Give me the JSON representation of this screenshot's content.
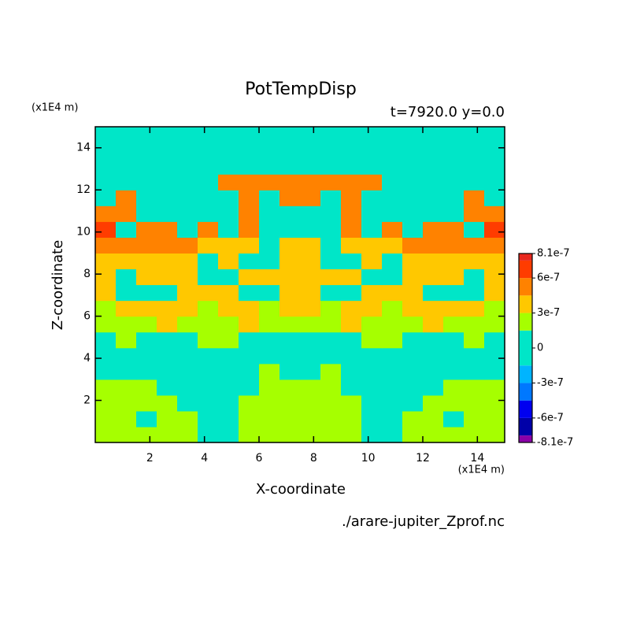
{
  "chart_data": {
    "type": "contour",
    "title": "PotTempDisp",
    "subtitle": "t=7920.0 y=0.0",
    "x_label": "X-coordinate",
    "y_label": "Z-coordinate",
    "x_unit": "(x1E4 m)",
    "y_unit": "(x1E4 m)",
    "source": "./arare-jupiter_Zprof.nc",
    "xlim": [
      0,
      15
    ],
    "ylim": [
      0,
      15
    ],
    "xticks": [
      2,
      4,
      6,
      8,
      10,
      12,
      14
    ],
    "yticks": [
      2,
      4,
      6,
      8,
      10,
      12,
      14
    ],
    "levels": [
      -8.1e-07,
      -7.5e-07,
      -6e-07,
      -4.5e-07,
      -3e-07,
      -1.5e-07,
      1.5e-07,
      3e-07,
      4.5e-07,
      6e-07,
      7.5e-07,
      8.1e-07
    ],
    "colors": [
      "#8a00a8",
      "#0000a8",
      "#0000f0",
      "#0078ff",
      "#00b4ff",
      "#00e6c8",
      "#a6ff00",
      "#ffc800",
      "#ff8200",
      "#ff3c00",
      "#e8281e",
      "#ff9a9a"
    ],
    "colorbar_ticks": [
      8.1e-07,
      6e-07,
      3e-07,
      0,
      -3e-07,
      -6e-07,
      -8.1e-07
    ],
    "x": [
      0.375,
      1.125,
      1.875,
      2.625,
      3.375,
      4.125,
      4.875,
      5.625,
      6.375,
      7.125,
      7.875,
      8.625,
      9.375,
      10.125,
      10.875,
      11.625,
      12.375,
      13.125,
      13.875,
      14.625
    ],
    "y": [
      0.375,
      1.125,
      1.875,
      2.625,
      3.375,
      4.125,
      4.875,
      5.625,
      6.375,
      7.125,
      7.875,
      8.625,
      9.375,
      10.125,
      10.875,
      11.625,
      12.375,
      13.125,
      13.875,
      14.625
    ],
    "z": [
      [
        2.2e-07,
        2.2e-07,
        2.2e-07,
        2.2e-07,
        2.2e-07,
        0,
        0,
        2.2e-07,
        2.2e-07,
        2.2e-07,
        2.2e-07,
        2.2e-07,
        2.2e-07,
        0,
        0,
        2.2e-07,
        2.2e-07,
        2.2e-07,
        2.2e-07,
        2.2e-07
      ],
      [
        2.2e-07,
        2.2e-07,
        0,
        2.2e-07,
        2.2e-07,
        0,
        0,
        2.2e-07,
        2.2e-07,
        2.2e-07,
        2.2e-07,
        2.2e-07,
        2.2e-07,
        0,
        0,
        2.2e-07,
        2.2e-07,
        0,
        2.2e-07,
        2.2e-07
      ],
      [
        2.2e-07,
        2.2e-07,
        2.2e-07,
        2.2e-07,
        0,
        0,
        0,
        2.2e-07,
        2.2e-07,
        2.2e-07,
        2.2e-07,
        2.2e-07,
        2.2e-07,
        0,
        0,
        0,
        2.2e-07,
        2.2e-07,
        2.2e-07,
        2.2e-07
      ],
      [
        2.2e-07,
        2.2e-07,
        2.2e-07,
        0,
        0,
        0,
        0,
        0,
        2.2e-07,
        2.2e-07,
        2.2e-07,
        2.2e-07,
        0,
        0,
        0,
        0,
        0,
        2.2e-07,
        2.2e-07,
        2.2e-07
      ],
      [
        0,
        0,
        0,
        0,
        0,
        0,
        0,
        0,
        2.2e-07,
        0,
        0,
        2.2e-07,
        0,
        0,
        0,
        0,
        0,
        0,
        0,
        0
      ],
      [
        0,
        0,
        0,
        0,
        0,
        0,
        0,
        0,
        0,
        0,
        0,
        0,
        0,
        0,
        0,
        0,
        0,
        0,
        0,
        0
      ],
      [
        0,
        2.2e-07,
        0,
        0,
        0,
        2.2e-07,
        2.2e-07,
        0,
        0,
        0,
        0,
        0,
        0,
        2.2e-07,
        2.2e-07,
        0,
        0,
        0,
        2.2e-07,
        0
      ],
      [
        2.2e-07,
        2.2e-07,
        2.2e-07,
        3.7e-07,
        2.2e-07,
        2.2e-07,
        2.2e-07,
        3.7e-07,
        2.2e-07,
        2.2e-07,
        2.2e-07,
        2.2e-07,
        3.7e-07,
        2.2e-07,
        2.2e-07,
        2.2e-07,
        3.7e-07,
        2.2e-07,
        2.2e-07,
        2.2e-07
      ],
      [
        2.2e-07,
        3.7e-07,
        3.7e-07,
        3.7e-07,
        3.7e-07,
        2.2e-07,
        3.7e-07,
        3.7e-07,
        2.2e-07,
        3.7e-07,
        3.7e-07,
        2.2e-07,
        3.7e-07,
        3.7e-07,
        2.2e-07,
        3.7e-07,
        3.7e-07,
        3.7e-07,
        3.7e-07,
        2.2e-07
      ],
      [
        3.7e-07,
        0,
        0,
        0,
        3.7e-07,
        3.7e-07,
        3.7e-07,
        0,
        0,
        3.7e-07,
        3.7e-07,
        0,
        0,
        3.7e-07,
        3.7e-07,
        3.7e-07,
        0,
        0,
        0,
        3.7e-07
      ],
      [
        3.7e-07,
        0,
        3.7e-07,
        3.7e-07,
        3.7e-07,
        0,
        0,
        3.7e-07,
        3.7e-07,
        3.7e-07,
        3.7e-07,
        3.7e-07,
        3.7e-07,
        0,
        0,
        3.7e-07,
        3.7e-07,
        3.7e-07,
        0,
        3.7e-07
      ],
      [
        3.7e-07,
        3.7e-07,
        3.7e-07,
        3.7e-07,
        3.7e-07,
        0,
        3.7e-07,
        0,
        0,
        3.7e-07,
        3.7e-07,
        0,
        0,
        3.7e-07,
        0,
        3.7e-07,
        3.7e-07,
        3.7e-07,
        3.7e-07,
        3.7e-07
      ],
      [
        5.2e-07,
        5.2e-07,
        5.2e-07,
        5.2e-07,
        5.2e-07,
        3.7e-07,
        3.7e-07,
        3.7e-07,
        0,
        3.7e-07,
        3.7e-07,
        0,
        3.7e-07,
        3.7e-07,
        3.7e-07,
        5.2e-07,
        5.2e-07,
        5.2e-07,
        5.2e-07,
        5.2e-07
      ],
      [
        6.8e-07,
        0,
        5.2e-07,
        5.2e-07,
        0,
        5.2e-07,
        0,
        5.2e-07,
        0,
        0,
        0,
        0,
        5.2e-07,
        0,
        5.2e-07,
        0,
        5.2e-07,
        5.2e-07,
        0,
        6.8e-07
      ],
      [
        5.2e-07,
        5.2e-07,
        0,
        0,
        0,
        0,
        0,
        5.2e-07,
        0,
        0,
        0,
        0,
        5.2e-07,
        0,
        0,
        0,
        0,
        0,
        5.2e-07,
        5.2e-07
      ],
      [
        0,
        5.2e-07,
        0,
        0,
        0,
        0,
        0,
        5.2e-07,
        0,
        5.2e-07,
        5.2e-07,
        0,
        5.2e-07,
        0,
        0,
        0,
        0,
        0,
        5.2e-07,
        0
      ],
      [
        0,
        0,
        0,
        0,
        0,
        0,
        5.2e-07,
        5.2e-07,
        5.2e-07,
        5.2e-07,
        5.2e-07,
        5.2e-07,
        5.2e-07,
        5.2e-07,
        0,
        0,
        0,
        0,
        0,
        0
      ],
      [
        0,
        0,
        0,
        0,
        0,
        0,
        0,
        0,
        0,
        0,
        0,
        0,
        0,
        0,
        0,
        0,
        0,
        0,
        0,
        0
      ],
      [
        0,
        0,
        0,
        0,
        0,
        0,
        0,
        0,
        0,
        0,
        0,
        0,
        0,
        0,
        0,
        0,
        0,
        0,
        0,
        0
      ],
      [
        0,
        0,
        0,
        0,
        0,
        0,
        0,
        0,
        0,
        0,
        0,
        0,
        0,
        0,
        0,
        0,
        0,
        0,
        0,
        0
      ]
    ]
  }
}
